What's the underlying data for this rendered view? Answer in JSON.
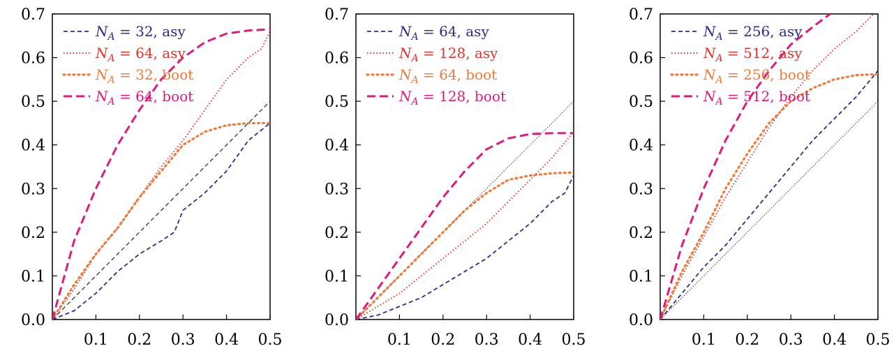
{
  "chart_data": [
    {
      "type": "line",
      "xlim": [
        0,
        0.5
      ],
      "ylim": [
        0,
        0.7
      ],
      "xticks": [
        "0.1",
        "0.2",
        "0.3",
        "0.4",
        "0.5"
      ],
      "yticks": [
        "0.0",
        "0.1",
        "0.2",
        "0.3",
        "0.4",
        "0.5",
        "0.6",
        "0.7"
      ],
      "legend_position": "top-left",
      "reference_line": {
        "style": "dashed",
        "color": "#222222",
        "x": [
          0,
          0.5
        ],
        "y": [
          0,
          0.5
        ]
      },
      "series": [
        {
          "name": "N_A = 32, asy",
          "legend_math": "N",
          "legend_sub": "A",
          "legend_rest": " = 32, asy",
          "color": "#2b2b8c",
          "style": "dashed",
          "x": [
            0,
            0.05,
            0.1,
            0.15,
            0.2,
            0.25,
            0.28,
            0.3,
            0.35,
            0.4,
            0.45,
            0.5
          ],
          "y": [
            0,
            0.02,
            0.06,
            0.11,
            0.15,
            0.18,
            0.2,
            0.25,
            0.29,
            0.34,
            0.41,
            0.45
          ]
        },
        {
          "name": "N_A = 64, asy",
          "legend_math": "N",
          "legend_sub": "A",
          "legend_rest": " = 64, asy",
          "color": "#e8322a",
          "style": "dotted",
          "x": [
            0,
            0.05,
            0.1,
            0.15,
            0.2,
            0.25,
            0.3,
            0.35,
            0.4,
            0.45,
            0.48,
            0.5
          ],
          "y": [
            0,
            0.07,
            0.15,
            0.21,
            0.28,
            0.35,
            0.41,
            0.48,
            0.55,
            0.6,
            0.62,
            0.66
          ]
        },
        {
          "name": "N_A = 32, boot",
          "legend_math": "N",
          "legend_sub": "A",
          "legend_rest": " = 32, boot",
          "color": "#f07a38",
          "style": "dotted-thick",
          "x": [
            0,
            0.05,
            0.1,
            0.15,
            0.2,
            0.25,
            0.3,
            0.35,
            0.4,
            0.45,
            0.5
          ],
          "y": [
            0,
            0.08,
            0.15,
            0.21,
            0.28,
            0.34,
            0.4,
            0.43,
            0.445,
            0.45,
            0.45
          ]
        },
        {
          "name": "N_A = 64, boot",
          "legend_math": "N",
          "legend_sub": "A",
          "legend_rest": " = 64, boot",
          "color": "#e0197a",
          "style": "dashed-thick",
          "x": [
            0,
            0.05,
            0.1,
            0.15,
            0.2,
            0.25,
            0.3,
            0.35,
            0.4,
            0.45,
            0.5
          ],
          "y": [
            0,
            0.18,
            0.3,
            0.4,
            0.48,
            0.55,
            0.6,
            0.635,
            0.655,
            0.662,
            0.665
          ]
        }
      ]
    },
    {
      "type": "line",
      "xlim": [
        0,
        0.5
      ],
      "ylim": [
        0,
        0.7
      ],
      "xticks": [
        "0.1",
        "0.2",
        "0.3",
        "0.4",
        "0.5"
      ],
      "yticks": [
        "0.0",
        "0.1",
        "0.2",
        "0.3",
        "0.4",
        "0.5",
        "0.6",
        "0.7"
      ],
      "legend_position": "top-left",
      "reference_line": {
        "style": "dotted",
        "color": "#222222",
        "x": [
          0,
          0.5
        ],
        "y": [
          0,
          0.5
        ]
      },
      "series": [
        {
          "name": "N_A = 64, asy",
          "legend_math": "N",
          "legend_sub": "A",
          "legend_rest": " = 64, asy",
          "color": "#2b2b8c",
          "style": "dashed",
          "x": [
            0,
            0.05,
            0.1,
            0.15,
            0.2,
            0.25,
            0.3,
            0.35,
            0.4,
            0.45,
            0.48,
            0.5
          ],
          "y": [
            0,
            0.01,
            0.03,
            0.05,
            0.08,
            0.11,
            0.14,
            0.18,
            0.22,
            0.27,
            0.29,
            0.33
          ]
        },
        {
          "name": "N_A = 128, asy",
          "legend_math": "N",
          "legend_sub": "A",
          "legend_rest": " = 128, asy",
          "color": "#e8322a",
          "style": "dotted",
          "x": [
            0,
            0.05,
            0.1,
            0.15,
            0.2,
            0.25,
            0.3,
            0.35,
            0.4,
            0.45,
            0.5
          ],
          "y": [
            0,
            0.03,
            0.06,
            0.1,
            0.14,
            0.18,
            0.22,
            0.27,
            0.32,
            0.37,
            0.43
          ]
        },
        {
          "name": "N_A = 64, boot",
          "legend_math": "N",
          "legend_sub": "A",
          "legend_rest": " = 64, boot",
          "color": "#f07a38",
          "style": "dotted-thick",
          "x": [
            0,
            0.05,
            0.1,
            0.15,
            0.2,
            0.25,
            0.3,
            0.35,
            0.4,
            0.45,
            0.5
          ],
          "y": [
            0,
            0.05,
            0.1,
            0.15,
            0.2,
            0.25,
            0.29,
            0.32,
            0.33,
            0.335,
            0.337
          ]
        },
        {
          "name": "N_A = 128, boot",
          "legend_math": "N",
          "legend_sub": "A",
          "legend_rest": " = 128, boot",
          "color": "#e0197a",
          "style": "dashed-thick",
          "x": [
            0,
            0.05,
            0.1,
            0.15,
            0.2,
            0.25,
            0.3,
            0.35,
            0.4,
            0.45,
            0.5
          ],
          "y": [
            0,
            0.07,
            0.14,
            0.21,
            0.28,
            0.34,
            0.39,
            0.415,
            0.425,
            0.427,
            0.427
          ]
        }
      ]
    },
    {
      "type": "line",
      "xlim": [
        0,
        0.5
      ],
      "ylim": [
        0,
        0.7
      ],
      "xticks": [
        "0.1",
        "0.2",
        "0.3",
        "0.4",
        "0.5"
      ],
      "yticks": [
        "0.0",
        "0.1",
        "0.2",
        "0.3",
        "0.4",
        "0.5",
        "0.6",
        "0.7"
      ],
      "legend_position": "top-left",
      "reference_line": {
        "style": "dotted",
        "color": "#222222",
        "x": [
          0,
          0.5
        ],
        "y": [
          0,
          0.5
        ]
      },
      "series": [
        {
          "name": "N_A = 256, asy",
          "legend_math": "N",
          "legend_sub": "A",
          "legend_rest": " = 256, asy",
          "color": "#2b2b8c",
          "style": "dashed",
          "x": [
            0,
            0.05,
            0.1,
            0.15,
            0.2,
            0.25,
            0.3,
            0.35,
            0.4,
            0.45,
            0.5
          ],
          "y": [
            0,
            0.06,
            0.12,
            0.17,
            0.23,
            0.29,
            0.35,
            0.41,
            0.46,
            0.51,
            0.57
          ]
        },
        {
          "name": "N_A = 512, asy",
          "legend_math": "N",
          "legend_sub": "A",
          "legend_rest": " = 512, asy",
          "color": "#e8322a",
          "style": "dotted",
          "x": [
            0,
            0.05,
            0.1,
            0.15,
            0.2,
            0.25,
            0.3,
            0.35,
            0.4,
            0.45,
            0.49
          ],
          "y": [
            0,
            0.1,
            0.19,
            0.28,
            0.36,
            0.44,
            0.51,
            0.57,
            0.62,
            0.66,
            0.7
          ]
        },
        {
          "name": "N_A = 256, boot",
          "legend_math": "N",
          "legend_sub": "A",
          "legend_rest": " = 256, boot",
          "color": "#f07a38",
          "style": "dotted-thick",
          "x": [
            0,
            0.05,
            0.1,
            0.15,
            0.2,
            0.25,
            0.3,
            0.35,
            0.4,
            0.45,
            0.5
          ],
          "y": [
            0,
            0.11,
            0.2,
            0.3,
            0.38,
            0.45,
            0.5,
            0.53,
            0.55,
            0.56,
            0.562
          ]
        },
        {
          "name": "N_A = 512, boot",
          "legend_math": "N",
          "legend_sub": "A",
          "legend_rest": " = 512, boot",
          "color": "#e0197a",
          "style": "dashed-thick",
          "x": [
            0,
            0.05,
            0.1,
            0.15,
            0.2,
            0.25,
            0.3,
            0.35,
            0.39
          ],
          "y": [
            0,
            0.17,
            0.3,
            0.41,
            0.5,
            0.57,
            0.63,
            0.67,
            0.7
          ]
        }
      ]
    }
  ]
}
